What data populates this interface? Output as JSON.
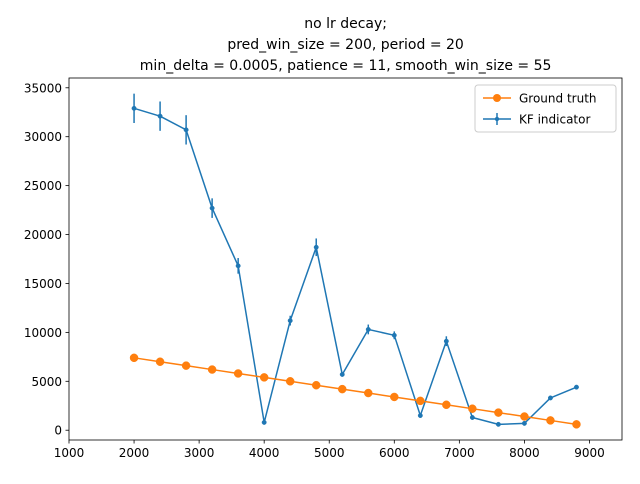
{
  "chart_data": {
    "type": "line",
    "title_lines": [
      "no lr decay;",
      "pred_win_size = 200, period = 20",
      "min_delta = 0.0005, patience = 11, smooth_win_size = 55"
    ],
    "xlabel": "",
    "ylabel": "",
    "xlim": [
      1000,
      9500
    ],
    "ylim": [
      -1000,
      36000
    ],
    "xticks": [
      1000,
      2000,
      3000,
      4000,
      5000,
      6000,
      7000,
      8000,
      9000
    ],
    "yticks": [
      0,
      5000,
      10000,
      15000,
      20000,
      25000,
      30000,
      35000
    ],
    "grid": false,
    "legend_position": "upper right",
    "series": [
      {
        "name": "Ground truth",
        "color": "#ff7f0e",
        "marker": "circle",
        "x": [
          2000,
          2400,
          2800,
          3200,
          3600,
          4000,
          4400,
          4800,
          5200,
          5600,
          6000,
          6400,
          6800,
          7200,
          7600,
          8000,
          8400,
          8800
        ],
        "y": [
          7400,
          7000,
          6600,
          6200,
          5800,
          5400,
          5000,
          4600,
          4200,
          3800,
          3400,
          3000,
          2600,
          2200,
          1800,
          1400,
          1000,
          600
        ]
      },
      {
        "name": "KF indicator",
        "color": "#1f77b4",
        "marker": "point-errorbar",
        "x": [
          2000,
          2400,
          2800,
          3200,
          3600,
          4000,
          4400,
          4800,
          5200,
          5600,
          6000,
          6400,
          6800,
          7200,
          7600,
          8000,
          8400,
          8800
        ],
        "y": [
          32900,
          32100,
          30700,
          22700,
          16800,
          800,
          11200,
          18700,
          5700,
          10300,
          9700,
          1500,
          9100,
          1300,
          600,
          700,
          3300,
          4400
        ],
        "yerr": [
          1500,
          1500,
          1500,
          1000,
          800,
          0,
          500,
          900,
          0,
          500,
          400,
          0,
          500,
          0,
          0,
          0,
          0,
          0
        ]
      }
    ]
  }
}
